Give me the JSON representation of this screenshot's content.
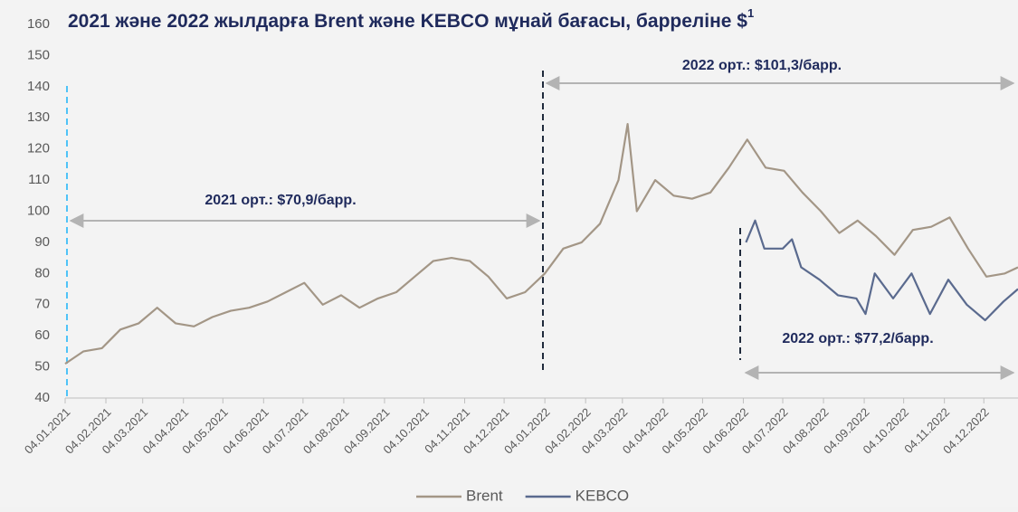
{
  "chart_data": {
    "type": "line",
    "title": "2021 және 2022 жылдарға Brent және KEBCO мұнай бағасы, барреліне $",
    "title_note": "1",
    "annotations": [
      "2021 орт.: $70,9/барр.",
      "2022 орт.: $101,3/барр.",
      "2022 орт.: $77,2/барр."
    ],
    "xlim": [
      "04.01.2021",
      "30.12.2022"
    ],
    "xticks": [
      "04.01.2021",
      "04.02.2021",
      "04.03.2021",
      "04.04.2021",
      "04.05.2021",
      "04.06.2021",
      "04.07.2021",
      "04.08.2021",
      "04.09.2021",
      "04.10.2021",
      "04.11.2021",
      "04.12.2021",
      "04.01.2022",
      "04.02.2022",
      "04.03.2022",
      "04.04.2022",
      "04.05.2022",
      "04.06.2022",
      "04.07.2022",
      "04.08.2022",
      "04.09.2022",
      "04.10.2022",
      "04.11.2022",
      "04.12.2022"
    ],
    "ylim": [
      40,
      160
    ],
    "yticks": [
      40,
      50,
      60,
      70,
      80,
      90,
      100,
      110,
      120,
      130,
      140,
      150,
      160
    ],
    "legend": "bottom",
    "series": [
      {
        "name": "Brent",
        "color": "#a39686",
        "x": [
          "04.01.2021",
          "18.01.2021",
          "01.02.2021",
          "15.02.2021",
          "01.03.2021",
          "15.03.2021",
          "29.03.2021",
          "12.04.2021",
          "26.04.2021",
          "10.05.2021",
          "24.05.2021",
          "07.06.2021",
          "21.06.2021",
          "05.07.2021",
          "19.07.2021",
          "02.08.2021",
          "16.08.2021",
          "30.08.2021",
          "13.09.2021",
          "27.09.2021",
          "11.10.2021",
          "25.10.2021",
          "08.11.2021",
          "22.11.2021",
          "06.12.2021",
          "20.12.2021",
          "04.01.2022",
          "18.01.2022",
          "01.02.2022",
          "15.02.2022",
          "01.03.2022",
          "08.03.2022",
          "15.03.2022",
          "29.03.2022",
          "12.04.2022",
          "26.04.2022",
          "10.05.2022",
          "24.05.2022",
          "07.06.2022",
          "21.06.2022",
          "05.07.2022",
          "19.07.2022",
          "02.08.2022",
          "16.08.2022",
          "30.08.2022",
          "13.09.2022",
          "27.09.2022",
          "11.10.2022",
          "25.10.2022",
          "08.11.2022",
          "22.11.2022",
          "06.12.2022",
          "20.12.2022",
          "30.12.2022"
        ],
        "values": [
          51,
          55,
          56,
          62,
          64,
          69,
          64,
          63,
          66,
          68,
          69,
          71,
          74,
          77,
          70,
          73,
          69,
          72,
          74,
          79,
          84,
          85,
          84,
          79,
          72,
          74,
          80,
          88,
          90,
          96,
          110,
          128,
          100,
          110,
          105,
          104,
          106,
          114,
          123,
          114,
          113,
          106,
          100,
          93,
          97,
          92,
          86,
          94,
          95,
          98,
          88,
          79,
          80,
          82
        ]
      },
      {
        "name": "KEBCO",
        "color": "#5a6a8e",
        "x": [
          "06.06.2022",
          "13.06.2022",
          "20.06.2022",
          "04.07.2022",
          "11.07.2022",
          "18.07.2022",
          "01.08.2022",
          "15.08.2022",
          "29.08.2022",
          "05.09.2022",
          "12.09.2022",
          "26.09.2022",
          "10.10.2022",
          "24.10.2022",
          "07.11.2022",
          "21.11.2022",
          "05.12.2022",
          "19.12.2022",
          "30.12.2022"
        ],
        "values": [
          90,
          97,
          88,
          88,
          91,
          82,
          78,
          73,
          72,
          67,
          80,
          72,
          80,
          67,
          78,
          70,
          65,
          71,
          75
        ]
      }
    ]
  }
}
